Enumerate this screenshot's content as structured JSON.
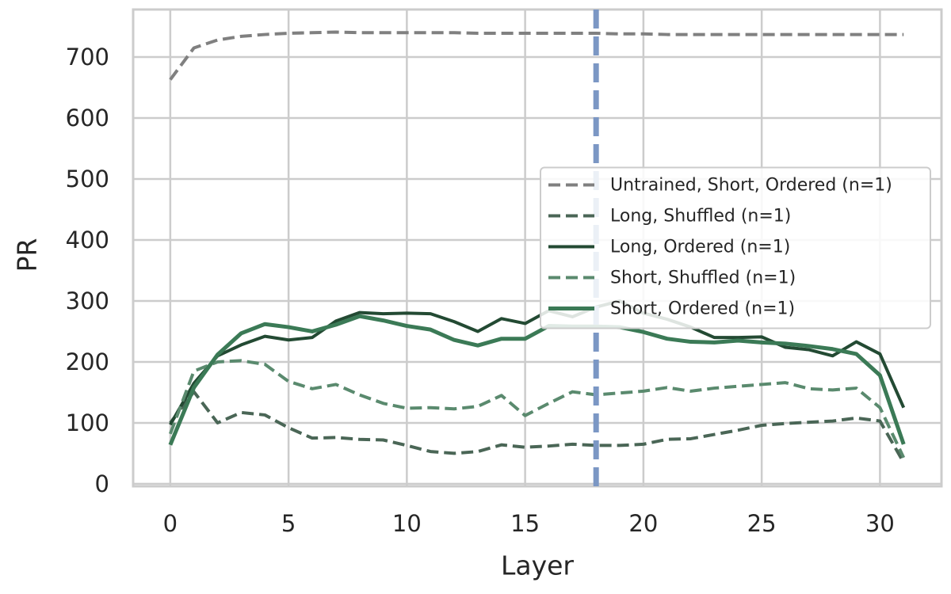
{
  "chart_data": {
    "type": "line",
    "x_label": "Layer",
    "y_label": "PR",
    "x": [
      0,
      1,
      2,
      3,
      4,
      5,
      6,
      7,
      8,
      9,
      10,
      11,
      12,
      13,
      14,
      15,
      16,
      17,
      18,
      19,
      20,
      21,
      22,
      23,
      24,
      25,
      26,
      27,
      28,
      29,
      30,
      31
    ],
    "series": [
      {
        "name": "Untrained, Short, Ordered (n=1)",
        "color": "#808080",
        "linestyle": "dashed",
        "linewidth": 4,
        "values": [
          663,
          715,
          728,
          734,
          737,
          739,
          740,
          741,
          740,
          740,
          740,
          740,
          740,
          739,
          739,
          739,
          739,
          739,
          739,
          738,
          738,
          737,
          737,
          737,
          737,
          737,
          737,
          737,
          737,
          737,
          737,
          737
        ]
      },
      {
        "name": "Long, Shuffled (n=1)",
        "color": "#4a6656",
        "linestyle": "dashed",
        "linewidth": 4,
        "values": [
          100,
          151,
          100,
          117,
          113,
          92,
          75,
          76,
          73,
          72,
          63,
          53,
          50,
          53,
          64,
          60,
          62,
          65,
          63,
          63,
          65,
          73,
          74,
          81,
          88,
          96,
          99,
          101,
          103,
          108,
          103,
          35
        ]
      },
      {
        "name": "Long, Ordered (n=1)",
        "color": "#234a33",
        "linestyle": "solid",
        "linewidth": 4,
        "values": [
          97,
          165,
          210,
          228,
          242,
          236,
          240,
          267,
          281,
          279,
          280,
          279,
          266,
          250,
          271,
          263,
          284,
          274,
          290,
          300,
          280,
          270,
          257,
          240,
          240,
          241,
          224,
          220,
          210,
          233,
          213,
          125
        ]
      },
      {
        "name": "Short, Shuffled (n=1)",
        "color": "#5a8a6e",
        "linestyle": "dashed",
        "linewidth": 4,
        "values": [
          82,
          185,
          200,
          202,
          196,
          168,
          156,
          163,
          146,
          132,
          124,
          125,
          123,
          127,
          145,
          112,
          132,
          151,
          146,
          149,
          152,
          158,
          152,
          157,
          160,
          163,
          166,
          156,
          154,
          157,
          125,
          43
        ]
      },
      {
        "name": "Short, Ordered (n=1)",
        "color": "#3b7a56",
        "linestyle": "solid",
        "linewidth": 5,
        "values": [
          64,
          158,
          212,
          247,
          262,
          257,
          250,
          261,
          275,
          268,
          259,
          253,
          236,
          227,
          238,
          238,
          259,
          258,
          258,
          257,
          249,
          238,
          233,
          232,
          235,
          232,
          230,
          226,
          221,
          213,
          178,
          65
        ]
      }
    ],
    "vline": {
      "x": 18,
      "color": "#7b97c4"
    },
    "xlim": [
      -1.57,
      32.6
    ],
    "ylim": [
      -4,
      778
    ],
    "xticks": [
      0,
      5,
      10,
      15,
      20,
      25,
      30
    ],
    "yticks": [
      0,
      100,
      200,
      300,
      400,
      500,
      600,
      700
    ],
    "grid": true,
    "legend_loc": "center right"
  }
}
